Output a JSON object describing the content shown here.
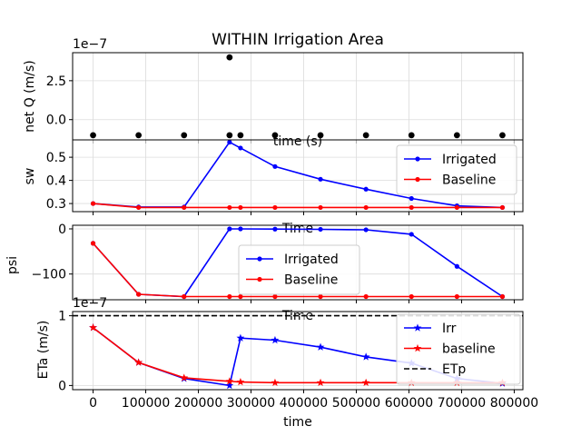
{
  "figure": {
    "title": "WITHIN Irrigation Area"
  },
  "chart_data": [
    {
      "type": "scatter",
      "ylabel": "net Q (m/s)",
      "xlabel": "time (s)",
      "offset_label": "1e−7",
      "ylim": [
        -1.3,
        4.3
      ],
      "yticks": [
        0,
        2.5
      ],
      "ytick_labels": [
        "0.0",
        "2.5"
      ],
      "grid": true,
      "series": [
        {
          "color": "#000000",
          "marker": "dot",
          "x": [
            0,
            86400,
            172800,
            259200,
            280000,
            345600,
            432000,
            518400,
            604800,
            691200,
            777600
          ],
          "y": [
            -1.0,
            -1.0,
            -1.0,
            -1.0,
            -1.0,
            -1.0,
            -1.0,
            -1.0,
            -1.0,
            -1.0,
            -1.0
          ]
        },
        {
          "color": "#000000",
          "marker": "dot",
          "x": [
            259200
          ],
          "y": [
            4.0
          ]
        }
      ]
    },
    {
      "type": "line",
      "ylabel": "sw",
      "xlabel": "Time",
      "ylim": [
        0.265,
        0.575
      ],
      "yticks": [
        0.3,
        0.4,
        0.5
      ],
      "ytick_labels": [
        "0.3",
        "0.4",
        "0.5"
      ],
      "grid": true,
      "legend": "upper right",
      "series": [
        {
          "name": "Irrigated",
          "color": "#0000ff",
          "marker": "dot",
          "x": [
            0,
            86400,
            172800,
            259200,
            280000,
            345600,
            432000,
            518400,
            604800,
            691200,
            777600
          ],
          "y": [
            0.3,
            0.285,
            0.285,
            0.565,
            0.54,
            0.46,
            0.405,
            0.362,
            0.322,
            0.29,
            0.283
          ]
        },
        {
          "name": "Baseline",
          "color": "#ff0000",
          "marker": "dot",
          "x": [
            0,
            86400,
            172800,
            259200,
            280000,
            345600,
            432000,
            518400,
            604800,
            691200,
            777600
          ],
          "y": [
            0.3,
            0.283,
            0.283,
            0.283,
            0.283,
            0.283,
            0.283,
            0.283,
            0.283,
            0.283,
            0.283
          ]
        }
      ]
    },
    {
      "type": "line",
      "ylabel": "psi",
      "xlabel": "Time",
      "ylim": [
        -157,
        8
      ],
      "yticks": [
        0,
        -100
      ],
      "ytick_labels": [
        "0",
        "−100"
      ],
      "grid": true,
      "legend": "center",
      "series": [
        {
          "name": "Irrigated",
          "color": "#0000ff",
          "marker": "dot",
          "x": [
            0,
            86400,
            172800,
            259200,
            280000,
            345600,
            432000,
            518400,
            604800,
            691200,
            777600
          ],
          "y": [
            -32,
            -145,
            -150,
            0,
            0,
            -0.5,
            -1,
            -2,
            -12,
            -83,
            -150
          ]
        },
        {
          "name": "Baseline",
          "color": "#ff0000",
          "marker": "dot",
          "x": [
            0,
            86400,
            172800,
            259200,
            280000,
            345600,
            432000,
            518400,
            604800,
            691200,
            777600
          ],
          "y": [
            -32,
            -145,
            -150,
            -150,
            -150,
            -150,
            -150,
            -150,
            -150,
            -150,
            -150
          ]
        }
      ]
    },
    {
      "type": "line",
      "ylabel": "ETa (m/s)",
      "xlabel": "time",
      "offset_label": "1e−7",
      "ylim": [
        -0.06,
        1.06
      ],
      "yticks": [
        0,
        1
      ],
      "ytick_labels": [
        "0",
        "1"
      ],
      "xlim": [
        -38880,
        816480
      ],
      "xticks": [
        0,
        100000,
        200000,
        300000,
        400000,
        500000,
        600000,
        700000,
        800000
      ],
      "xtick_labels": [
        "0",
        "100000",
        "200000",
        "300000",
        "400000",
        "500000",
        "600000",
        "700000",
        "800000"
      ],
      "grid": true,
      "legend": "upper right",
      "series": [
        {
          "name": "Irr",
          "color": "#0000ff",
          "marker": "star",
          "x": [
            0,
            86400,
            172800,
            259200,
            280000,
            345600,
            432000,
            518400,
            604800,
            691200,
            777600
          ],
          "y": [
            0.83,
            0.33,
            0.1,
            0.0,
            0.68,
            0.65,
            0.55,
            0.41,
            0.32,
            0.1,
            0.03
          ]
        },
        {
          "name": "baseline",
          "color": "#ff0000",
          "marker": "star",
          "x": [
            0,
            86400,
            172800,
            259200,
            280000,
            345600,
            432000,
            518400,
            604800,
            691200,
            777600
          ],
          "y": [
            0.83,
            0.33,
            0.11,
            0.06,
            0.05,
            0.04,
            0.04,
            0.04,
            0.04,
            0.04,
            0.04
          ]
        },
        {
          "name": "ETp",
          "color": "#000000",
          "style": "dashed",
          "x": [
            -38880,
            816480
          ],
          "y": [
            1.0,
            1.0
          ]
        }
      ]
    }
  ]
}
